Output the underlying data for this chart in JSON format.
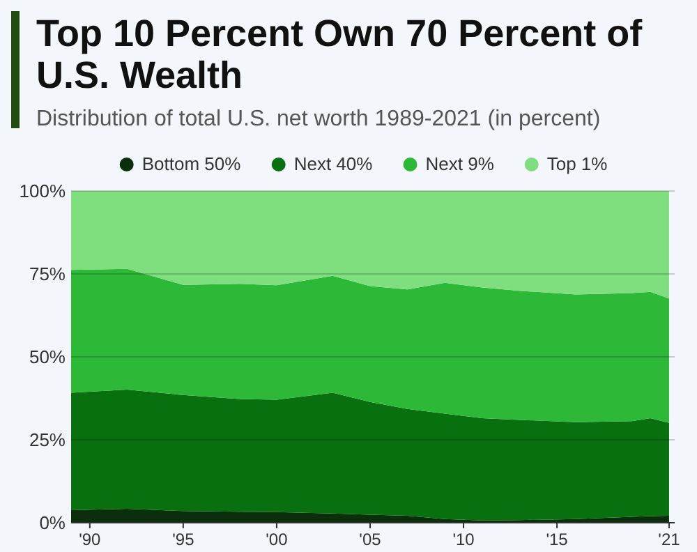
{
  "chart_data": {
    "type": "area",
    "stacked": true,
    "title": "Top 10 Percent Own 70 Percent of U.S. Wealth",
    "subtitle": "Distribution of total U.S. net worth 1989-2021 (in percent)",
    "x": [
      1989,
      1992,
      1995,
      1998,
      2000,
      2003,
      2005,
      2007,
      2009,
      2011,
      2013,
      2016,
      2019,
      2020,
      2021
    ],
    "series": [
      {
        "name": "Bottom 50%",
        "color": "#0b2e0b",
        "values": [
          3.8,
          4.2,
          3.5,
          3.3,
          3.2,
          2.8,
          2.4,
          2.1,
          1.1,
          0.7,
          0.8,
          1.1,
          1.8,
          2.0,
          2.1
        ]
      },
      {
        "name": "Next 40%",
        "color": "#08700f",
        "values": [
          35.4,
          35.9,
          35.0,
          34.0,
          33.9,
          36.4,
          34.0,
          32.2,
          31.8,
          30.8,
          30.2,
          29.2,
          28.8,
          29.5,
          28.0
        ]
      },
      {
        "name": "Next 9%",
        "color": "#2eb837",
        "values": [
          37.0,
          36.4,
          33.2,
          34.7,
          34.5,
          35.2,
          34.9,
          36.0,
          39.4,
          39.4,
          38.9,
          38.5,
          38.6,
          38.1,
          37.5
        ]
      },
      {
        "name": "Top 1%",
        "color": "#7fdf7f",
        "values": [
          23.8,
          23.5,
          28.3,
          28.0,
          28.4,
          25.6,
          28.7,
          29.7,
          27.7,
          29.1,
          30.1,
          31.2,
          30.8,
          30.4,
          32.4
        ]
      }
    ],
    "xlim": [
      1989,
      2021.3
    ],
    "xticks": [
      {
        "value": 1990,
        "label": "'90"
      },
      {
        "value": 1995,
        "label": "'95"
      },
      {
        "value": 2000,
        "label": "'00"
      },
      {
        "value": 2005,
        "label": "'05"
      },
      {
        "value": 2010,
        "label": "'10"
      },
      {
        "value": 2015,
        "label": "'15"
      },
      {
        "value": 2021,
        "label": "'21"
      }
    ],
    "ylim": [
      0,
      100
    ],
    "yticks": [
      {
        "value": 0,
        "label": "0%"
      },
      {
        "value": 25,
        "label": "25%"
      },
      {
        "value": 50,
        "label": "50%"
      },
      {
        "value": 75,
        "label": "75%"
      },
      {
        "value": 100,
        "label": "100%"
      }
    ],
    "grid": "y",
    "legend": "top"
  }
}
